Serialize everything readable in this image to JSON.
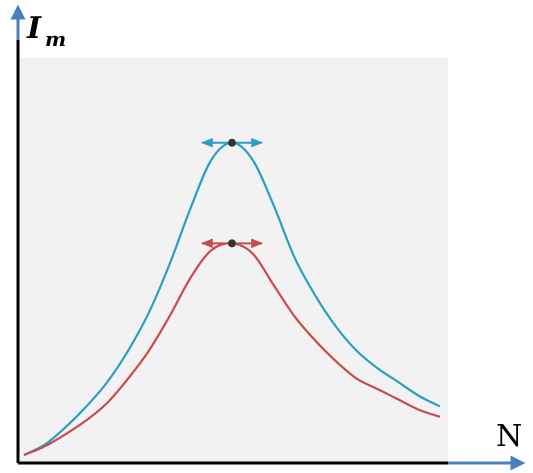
{
  "chart_data": {
    "type": "line",
    "xlabel": "N",
    "ylabel": "I",
    "ylabel_subscript": "m",
    "xlim": [
      0,
      10
    ],
    "ylim": [
      0,
      10
    ],
    "grid": false,
    "axes_color": "#000000",
    "arrow_color": "#4a80c0",
    "panel_background": "#f2f2f2",
    "series": [
      {
        "color": "#2a9fc4",
        "peak_marker": true,
        "x": [
          0,
          0.5,
          1,
          1.5,
          2,
          2.5,
          3,
          3.5,
          4,
          4.5,
          5,
          5.5,
          6,
          6.5,
          7,
          7.5,
          8,
          8.5,
          9,
          9.5,
          10
        ],
        "y": [
          0,
          0.3,
          0.8,
          1.4,
          2.1,
          3.0,
          4.1,
          5.5,
          7.1,
          8.5,
          9.0,
          8.5,
          7.2,
          5.7,
          4.6,
          3.7,
          3.0,
          2.5,
          2.1,
          1.7,
          1.4
        ]
      },
      {
        "color": "#c94c4c",
        "peak_marker": true,
        "x": [
          0,
          0.5,
          1,
          1.5,
          2,
          2.5,
          3,
          3.5,
          4,
          4.5,
          5,
          5.5,
          6,
          6.5,
          7,
          7.5,
          8,
          8.5,
          9,
          9.5,
          10
        ],
        "y": [
          0,
          0.25,
          0.6,
          1.0,
          1.5,
          2.2,
          3.0,
          4.0,
          5.1,
          5.9,
          6.1,
          5.8,
          4.9,
          4.0,
          3.3,
          2.7,
          2.2,
          1.9,
          1.6,
          1.3,
          1.1
        ]
      }
    ]
  }
}
